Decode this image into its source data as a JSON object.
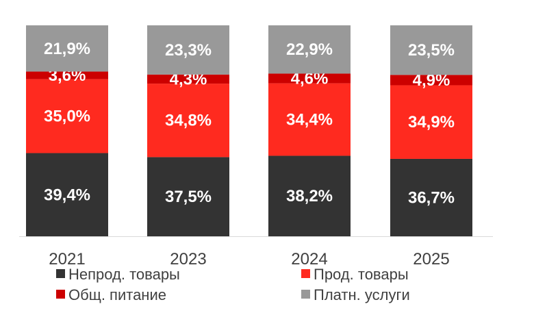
{
  "chart_data": {
    "type": "bar",
    "stacked": true,
    "categories": [
      "2021",
      "2023",
      "2024",
      "2025"
    ],
    "series": [
      {
        "name": "Непрод. товары",
        "color": "#333333",
        "values": [
          39.4,
          37.5,
          38.2,
          36.7
        ],
        "labels": [
          "39,4%",
          "37,5%",
          "38,2%",
          "36,7%"
        ]
      },
      {
        "name": "Прод. товары",
        "color": "#ff2a1f",
        "values": [
          35.0,
          34.8,
          34.4,
          34.9
        ],
        "labels": [
          "35,0%",
          "34,8%",
          "34,4%",
          "34,9%"
        ]
      },
      {
        "name": "Общ. питание",
        "color": "#cc0000",
        "values": [
          3.6,
          4.3,
          4.6,
          4.9
        ],
        "labels": [
          "3,6%",
          "4,3%",
          "4,6%",
          "4,9%"
        ]
      },
      {
        "name": "Платн. услуги",
        "color": "#999999",
        "values": [
          21.9,
          23.3,
          22.9,
          23.5
        ],
        "labels": [
          "21,9%",
          "23,3%",
          "22,9%",
          "23,5%"
        ]
      }
    ],
    "ylim": [
      0,
      100
    ],
    "grid": false,
    "legend": "bottom"
  }
}
